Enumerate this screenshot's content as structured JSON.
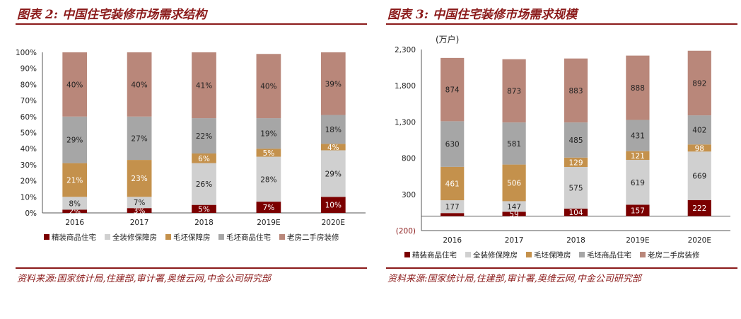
{
  "colors": {
    "title": "#8b1a1a",
    "jingzhuang": "#7b0000",
    "quanzhuang": "#d0d0d0",
    "maopi_bz": "#c4914c",
    "maopi_sp": "#a6a6a6",
    "laofang": "#b9877a"
  },
  "left": {
    "title": "图表 2:  中国住宅装修市场需求结构",
    "source": "资料来源:国家统计局,住建部,审计署,奥维云网,中金公司研究部"
  },
  "right": {
    "title": "图表 3:  中国住宅装修市场需求规模",
    "source": "资料来源:国家统计局,住建部,审计署,奥维云网,中金公司研究部"
  },
  "chart_data": [
    {
      "type": "bar",
      "stacked": true,
      "percent": true,
      "categories": [
        "2016",
        "2017",
        "2018",
        "2019E",
        "2020E"
      ],
      "ylim": [
        0,
        100
      ],
      "yticks": [
        "0%",
        "10%",
        "20%",
        "30%",
        "40%",
        "50%",
        "60%",
        "70%",
        "80%",
        "90%",
        "100%"
      ],
      "series": [
        {
          "name": "精装商品住宅",
          "values": [
            2,
            3,
            5,
            7,
            10
          ],
          "labels": [
            "2%",
            "3%",
            "5%",
            "7%",
            "10%"
          ]
        },
        {
          "name": "全装修保障房",
          "values": [
            8,
            7,
            26,
            28,
            29
          ],
          "labels": [
            "8%",
            "7%",
            "26%",
            "28%",
            "29%"
          ]
        },
        {
          "name": "毛坯保障房",
          "values": [
            21,
            23,
            6,
            5,
            4
          ],
          "labels": [
            "21%",
            "23%",
            "6%",
            "5%",
            "4%"
          ]
        },
        {
          "name": "毛坯商品住宅",
          "values": [
            29,
            27,
            22,
            19,
            18
          ],
          "labels": [
            "29%",
            "27%",
            "22%",
            "19%",
            "18%"
          ]
        },
        {
          "name": "老房二手房装修",
          "values": [
            40,
            40,
            41,
            40,
            39
          ],
          "labels": [
            "40%",
            "40%",
            "41%",
            "40%",
            "39%"
          ]
        }
      ],
      "legend": "bottom"
    },
    {
      "type": "bar",
      "stacked": true,
      "unit_label": "(万户)",
      "categories": [
        "2016",
        "2017",
        "2018",
        "2019E",
        "2020E"
      ],
      "ylim": [
        -200,
        2300
      ],
      "yticks": [
        "(200)",
        "300",
        "800",
        "1,300",
        "1,800",
        "2,300"
      ],
      "series": [
        {
          "name": "精装商品住宅",
          "values": [
            42,
            59,
            104,
            157,
            222
          ],
          "labels": [
            "",
            "59",
            "104",
            "157",
            "222"
          ]
        },
        {
          "name": "全装修保障房",
          "values": [
            177,
            147,
            575,
            619,
            669
          ],
          "labels": [
            "177",
            "147",
            "575",
            "619",
            "669"
          ]
        },
        {
          "name": "毛坯保障房",
          "values": [
            461,
            506,
            129,
            121,
            98
          ],
          "labels": [
            "461",
            "506",
            "129",
            "121",
            "98"
          ]
        },
        {
          "name": "毛坯商品住宅",
          "values": [
            630,
            581,
            485,
            431,
            402
          ],
          "labels": [
            "630",
            "581",
            "485",
            "431",
            "402"
          ]
        },
        {
          "name": "老房二手房装修",
          "values": [
            874,
            873,
            883,
            888,
            892
          ],
          "labels": [
            "874",
            "873",
            "883",
            "888",
            "892"
          ]
        }
      ],
      "legend": "bottom"
    }
  ]
}
